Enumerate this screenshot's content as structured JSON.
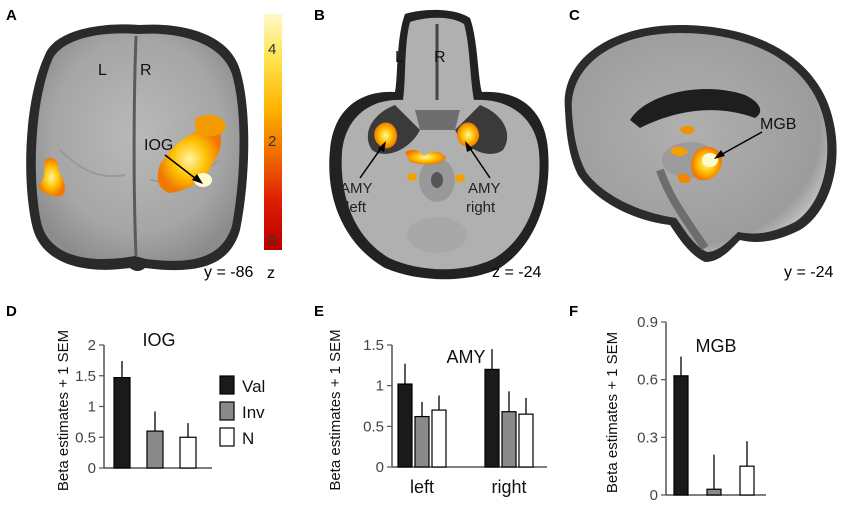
{
  "panels": {
    "A": {
      "letter": "A",
      "left_label": "L",
      "right_label": "R",
      "region_label": "IOG",
      "coord": "y = -86"
    },
    "B": {
      "letter": "B",
      "left_label": "L",
      "right_label": "R",
      "amy_left_1": "AMY",
      "amy_left_2": "left",
      "amy_right_1": "AMY",
      "amy_right_2": "right",
      "coord": "z = -24"
    },
    "C": {
      "letter": "C",
      "region_label": "MGB",
      "coord": "y = -24"
    },
    "D": {
      "letter": "D"
    },
    "E": {
      "letter": "E"
    },
    "F": {
      "letter": "F"
    }
  },
  "colorbar": {
    "ticks": [
      "4",
      "2",
      "0"
    ],
    "label": "z",
    "stops": [
      "#fff9c8",
      "#ffe14a",
      "#ffb400",
      "#f06a00",
      "#dd1b00",
      "#b80000"
    ]
  },
  "legend": {
    "items": [
      {
        "label": "Val",
        "color": "#1a1a1a"
      },
      {
        "label": "Inv",
        "color": "#8a8a8a"
      },
      {
        "label": "N",
        "color": "#ffffff"
      }
    ]
  },
  "chart_data": [
    {
      "type": "bar",
      "title": "IOG",
      "ylabel": "Beta estimates + 1 SEM",
      "categories": [
        "Val",
        "Inv",
        "N"
      ],
      "values": [
        1.47,
        0.6,
        0.5
      ],
      "errors": [
        0.27,
        0.32,
        0.23
      ],
      "ylim": [
        0,
        2
      ],
      "yticks": [
        "0",
        "0.5",
        "1",
        "1.5",
        "2"
      ],
      "ytick_values": [
        0,
        0.5,
        1,
        1.5,
        2
      ]
    },
    {
      "type": "bar",
      "title": "AMY",
      "ylabel": "Beta estimates + 1 SEM",
      "categories": [
        "left",
        "right"
      ],
      "series": [
        {
          "name": "Val",
          "values": [
            1.02,
            1.2
          ],
          "errors": [
            0.25,
            0.25
          ]
        },
        {
          "name": "Inv",
          "values": [
            0.62,
            0.68
          ],
          "errors": [
            0.18,
            0.25
          ]
        },
        {
          "name": "N",
          "values": [
            0.7,
            0.65
          ],
          "errors": [
            0.18,
            0.2
          ]
        }
      ],
      "ylim": [
        0,
        1.5
      ],
      "yticks": [
        "0",
        "0.5",
        "1",
        "1.5"
      ],
      "ytick_values": [
        0,
        0.5,
        1,
        1.5
      ]
    },
    {
      "type": "bar",
      "title": "MGB",
      "ylabel": "Beta estimates + 1 SEM",
      "categories": [
        "Val",
        "Inv",
        "N"
      ],
      "values": [
        0.62,
        0.03,
        0.15
      ],
      "errors": [
        0.1,
        0.18,
        0.13
      ],
      "ylim": [
        0,
        0.9
      ],
      "yticks": [
        "0",
        "0.3",
        "0.6",
        "0.9"
      ],
      "ytick_values": [
        0,
        0.3,
        0.6,
        0.9
      ]
    }
  ]
}
